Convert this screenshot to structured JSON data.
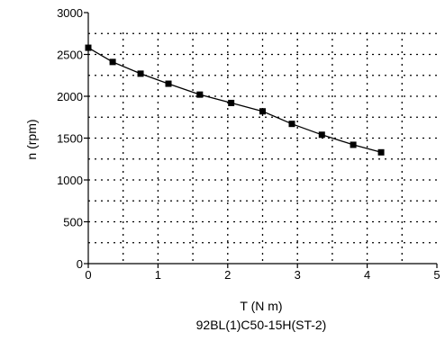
{
  "chart_data": {
    "type": "line",
    "xlabel": "T (N m)",
    "ylabel": "n (rpm)",
    "subtitle": "92BL(1)C50-15H(ST-2)",
    "xlim": [
      0,
      5
    ],
    "ylim": [
      0,
      3000
    ],
    "xticks": [
      "0",
      "1",
      "2",
      "3",
      "4",
      "5"
    ],
    "yticks": [
      "0",
      "500",
      "1000",
      "1500",
      "2000",
      "2500",
      "3000"
    ],
    "grid": true,
    "marker": "square",
    "series": [
      {
        "x": [
          0.0,
          0.35,
          0.75,
          1.15,
          1.6,
          2.05,
          2.5,
          2.92,
          3.35,
          3.8,
          4.2
        ],
        "y": [
          2580,
          2410,
          2270,
          2150,
          2020,
          1920,
          1820,
          1670,
          1540,
          1420,
          1330
        ]
      }
    ],
    "colors": {
      "line": "#000000",
      "grid": "#000000",
      "background": "#ffffff"
    }
  }
}
